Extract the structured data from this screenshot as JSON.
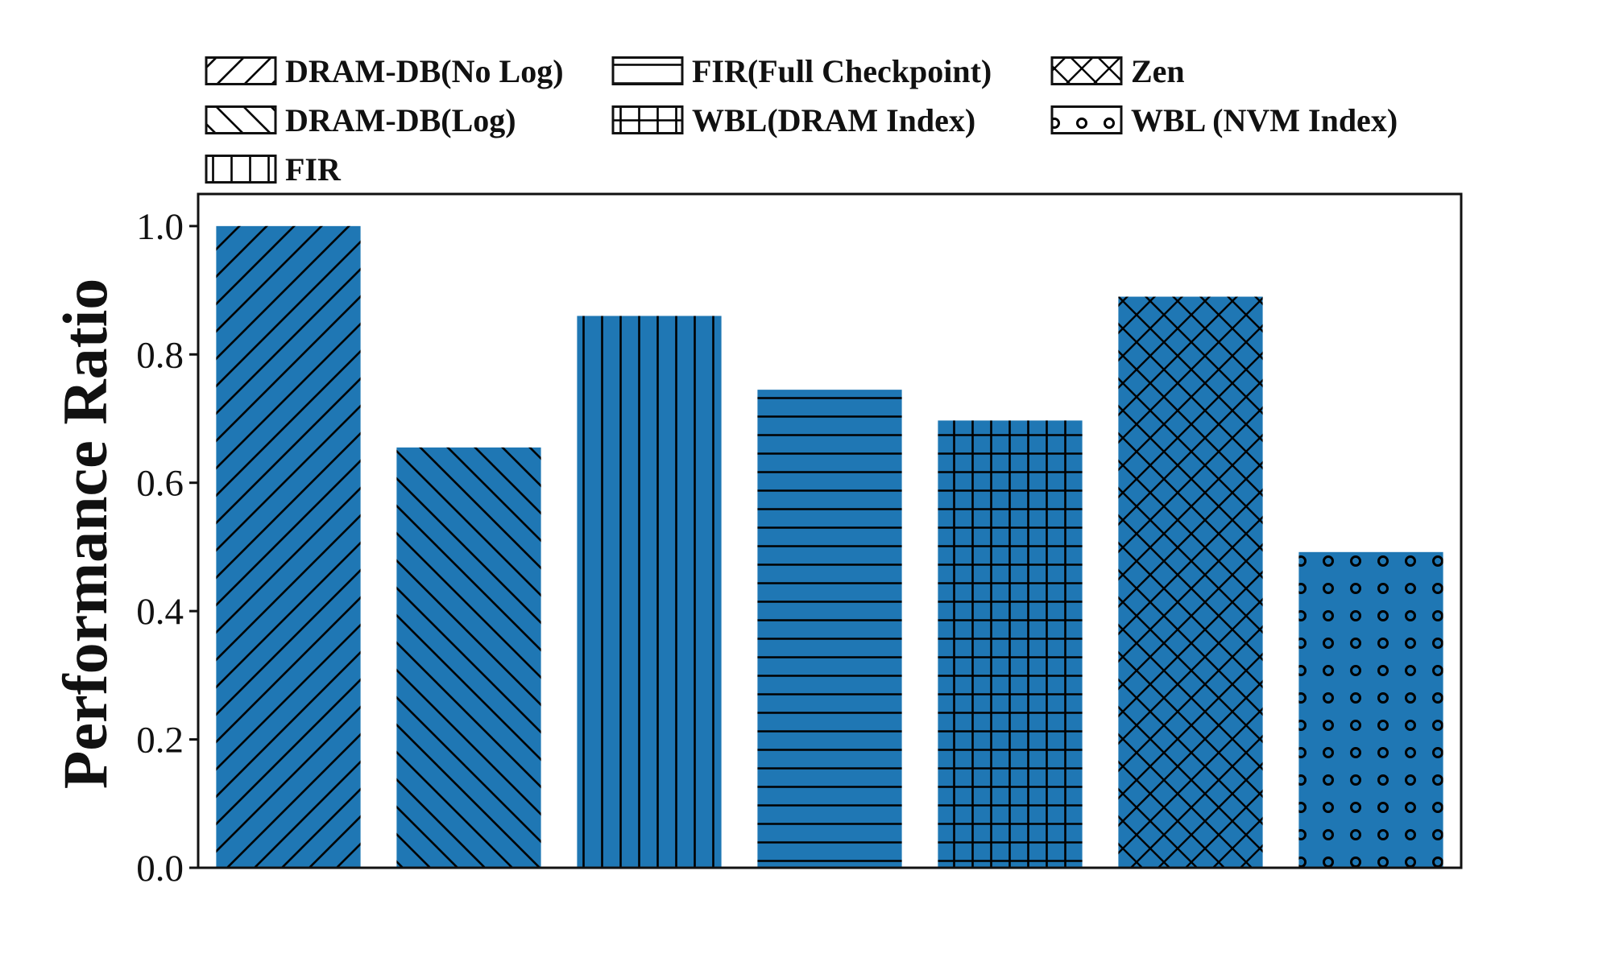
{
  "colors": {
    "bar_fill": "#1f77b4",
    "hatch": "#000000",
    "axes": "#111111",
    "background": "#ffffff"
  },
  "legend": {
    "items": [
      {
        "label": "DRAM-DB(No Log)",
        "pattern": "diagonal-up"
      },
      {
        "label": "FIR(Full Checkpoint)",
        "pattern": "horizontal"
      },
      {
        "label": "Zen",
        "pattern": "crosshatch-diagonal"
      },
      {
        "label": "DRAM-DB(Log)",
        "pattern": "diagonal-down"
      },
      {
        "label": "WBL(DRAM Index)",
        "pattern": "grid"
      },
      {
        "label": "WBL (NVM Index)",
        "pattern": "circles"
      },
      {
        "label": "FIR",
        "pattern": "vertical"
      }
    ],
    "placement": "top, above axes, three columns"
  },
  "chart_data": {
    "type": "bar",
    "title": "",
    "xlabel": "",
    "ylabel": "Performance Ratio",
    "ylim": [
      0,
      1.05
    ],
    "yticks": [
      "0.0",
      "0.2",
      "0.4",
      "0.6",
      "0.8",
      "1.0"
    ],
    "ytick_values": [
      0,
      0.2,
      0.4,
      0.6,
      0.8,
      1.0
    ],
    "grid": false,
    "bars": [
      {
        "series": "DRAM-DB(No Log)",
        "value": 1.0,
        "pattern": "diagonal-up"
      },
      {
        "series": "DRAM-DB(Log)",
        "value": 0.655,
        "pattern": "diagonal-down"
      },
      {
        "series": "FIR",
        "value": 0.86,
        "pattern": "vertical"
      },
      {
        "series": "FIR(Full Checkpoint)",
        "value": 0.745,
        "pattern": "horizontal"
      },
      {
        "series": "WBL(DRAM Index)",
        "value": 0.697,
        "pattern": "grid"
      },
      {
        "series": "Zen",
        "value": 0.89,
        "pattern": "crosshatch-diagonal"
      },
      {
        "series": "WBL (NVM Index)",
        "value": 0.492,
        "pattern": "circles"
      }
    ]
  }
}
